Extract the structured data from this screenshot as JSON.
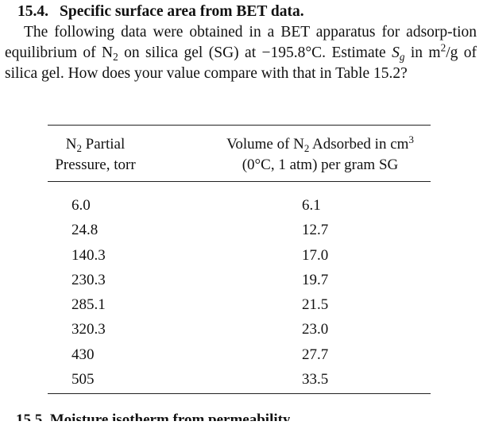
{
  "problem": {
    "number": "15.4.",
    "title": "Specific surface area from BET data.",
    "text_part1": "The following data were obtained in a BET apparatus for adsorp-tion equilibrium of N",
    "text_sub1": "2",
    "text_part2": " on silica gel (SG) at −195.8°C. Estimate ",
    "symbol_S": "S",
    "symbol_sub_g": "g",
    "text_part3": " in m",
    "text_sup2": "2",
    "text_part4": "/g of silica gel. How does your value compare with that in Table 15.2?"
  },
  "table": {
    "col1_header_a": "N",
    "col1_header_sub": "2",
    "col1_header_b": " Partial",
    "col1_header_line2": "Pressure, torr",
    "col2_header_a": "Volume of N",
    "col2_header_sub": "2",
    "col2_header_b": " Adsorbed in cm",
    "col2_header_sup": "3",
    "col2_header_line2": "(0°C, 1 atm) per gram SG",
    "rows": [
      {
        "pressure": "6.0",
        "volume": "6.1"
      },
      {
        "pressure": "24.8",
        "volume": "12.7"
      },
      {
        "pressure": "140.3",
        "volume": "17.0"
      },
      {
        "pressure": "230.3",
        "volume": "19.7"
      },
      {
        "pressure": "285.1",
        "volume": "21.5"
      },
      {
        "pressure": "320.3",
        "volume": "23.0"
      },
      {
        "pressure": "430",
        "volume": "27.7"
      },
      {
        "pressure": "505",
        "volume": "33.5"
      }
    ]
  },
  "next_problem_cutoff": "15.5.   Moisture isotherm from permeability"
}
